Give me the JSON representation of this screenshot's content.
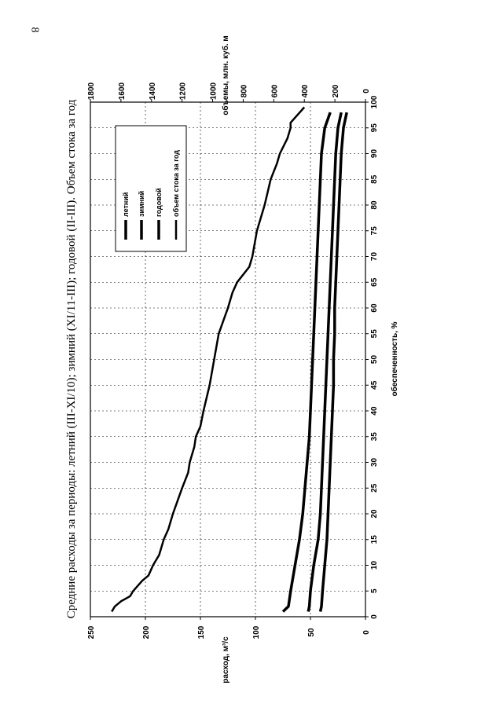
{
  "page": {
    "number": "8"
  },
  "chart_data": {
    "type": "line",
    "title": "Средние расходы за периоды: летний (III-XI/10); зимний (XI/11-III); годовой (II-III). Объем стока за год",
    "xlabel": "обеспеченность, %",
    "ylabel": "расход, м³/с",
    "y2label": "объемы, млн. куб. м",
    "xlim": [
      0,
      100
    ],
    "ylim": [
      0,
      250
    ],
    "y2lim": [
      0,
      1800
    ],
    "x_ticks": [
      0,
      5,
      10,
      15,
      20,
      25,
      30,
      35,
      40,
      45,
      50,
      55,
      60,
      65,
      70,
      75,
      80,
      85,
      90,
      95,
      100
    ],
    "y_ticks": [
      0,
      50,
      100,
      150,
      200,
      250
    ],
    "y2_ticks": [
      0,
      200,
      400,
      600,
      800,
      1000,
      1200,
      1400,
      1600,
      1800
    ],
    "grid": true,
    "legend_position": "top-right",
    "series": [
      {
        "name": "летний",
        "axis": "left",
        "x": [
          1,
          2,
          5,
          10,
          15,
          20,
          25,
          30,
          35,
          40,
          45,
          50,
          55,
          60,
          65,
          70,
          75,
          80,
          85,
          90,
          95,
          98
        ],
        "y": [
          75,
          70,
          68,
          64,
          60,
          57,
          55,
          53,
          51,
          50,
          49,
          48,
          47,
          46,
          45,
          44,
          43,
          42,
          41,
          40,
          37,
          32
        ]
      },
      {
        "name": "зимний",
        "axis": "left",
        "x": [
          1,
          2,
          5,
          10,
          15,
          20,
          25,
          30,
          35,
          40,
          45,
          50,
          55,
          60,
          65,
          70,
          75,
          80,
          85,
          90,
          95,
          98
        ],
        "y": [
          41,
          40,
          39,
          37,
          35,
          34,
          33,
          32,
          31,
          30,
          29,
          29,
          28,
          28,
          27,
          26,
          25,
          24,
          23,
          22,
          20,
          17
        ]
      },
      {
        "name": "годовой",
        "axis": "left",
        "x": [
          1,
          2,
          5,
          10,
          15,
          20,
          25,
          30,
          35,
          40,
          45,
          50,
          55,
          60,
          65,
          70,
          75,
          80,
          85,
          90,
          95,
          98
        ],
        "y": [
          52,
          51,
          50,
          47,
          43,
          41,
          40,
          39,
          38,
          37,
          36,
          35,
          34,
          33,
          32,
          31,
          30,
          29,
          28,
          27,
          25,
          22
        ]
      },
      {
        "name": "объем стока за год",
        "axis": "right",
        "x": [
          1,
          2,
          3,
          4,
          5,
          7,
          8,
          10,
          12,
          15,
          17,
          20,
          25,
          28,
          30,
          33,
          35,
          37,
          40,
          45,
          50,
          55,
          60,
          63,
          65,
          68,
          70,
          75,
          80,
          85,
          88,
          90,
          93,
          95,
          96,
          99
        ],
        "y": [
          1660,
          1640,
          1600,
          1540,
          1520,
          1460,
          1420,
          1390,
          1350,
          1320,
          1290,
          1260,
          1200,
          1160,
          1150,
          1120,
          1110,
          1080,
          1060,
          1020,
          990,
          960,
          900,
          870,
          840,
          760,
          740,
          710,
          660,
          620,
          580,
          560,
          510,
          490,
          490,
          400
        ]
      }
    ]
  }
}
